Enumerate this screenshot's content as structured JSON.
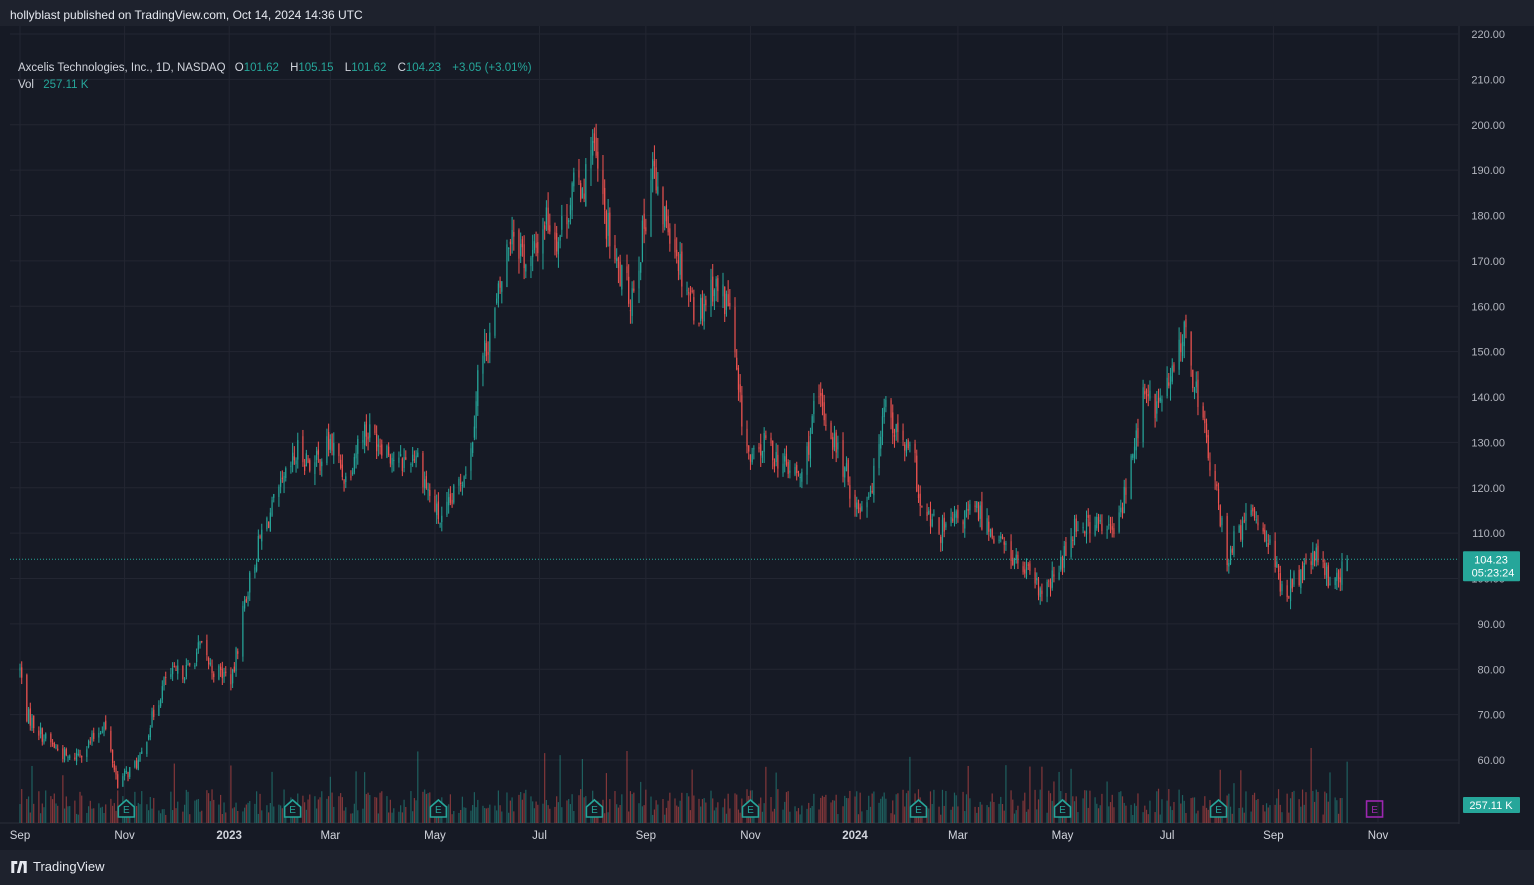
{
  "header": {
    "published_text": "hollyblast published on TradingView.com, Oct 14, 2024 14:36 UTC"
  },
  "legend": {
    "symbol": "Axcelis Technologies, Inc., 1D, NASDAQ",
    "o_label": "O",
    "o_value": "101.62",
    "h_label": "H",
    "h_value": "105.15",
    "l_label": "L",
    "l_value": "101.62",
    "c_label": "C",
    "c_value": "104.23",
    "change": "+3.05 (+3.01%)",
    "vol_label": "Vol",
    "vol_value": "257.11 K"
  },
  "price_badge": {
    "price": "104.23",
    "countdown": "05:23:24"
  },
  "volume_badge": "257.11 K",
  "footer": {
    "brand": "TradingView"
  },
  "colors": {
    "up": "#26a69a",
    "down": "#ef5350",
    "earnings_upcoming": "#9c27b0",
    "background": "#161a25"
  },
  "chart_data": {
    "type": "candlestick",
    "title": "Axcelis Technologies, Inc., 1D, NASDAQ",
    "price_axis": {
      "ticks": [
        "220.00",
        "210.00",
        "200.00",
        "190.00",
        "180.00",
        "170.00",
        "160.00",
        "150.00",
        "140.00",
        "130.00",
        "120.00",
        "110.00",
        "100.00",
        "90.00",
        "80.00",
        "70.00",
        "60.00"
      ],
      "range": [
        51,
        222
      ]
    },
    "time_axis": {
      "labels": [
        "Sep",
        "Nov",
        "2023",
        "Mar",
        "May",
        "Jul",
        "Sep",
        "Nov",
        "2024",
        "Mar",
        "May",
        "Jul",
        "Sep",
        "Nov"
      ],
      "bold_labels": [
        "2023",
        "2024"
      ],
      "start": "2022-09-01",
      "end": "2024-11-10"
    },
    "last_price": 104.23,
    "grid": true,
    "earnings_markers": [
      {
        "date": "2022-11-02",
        "label": "E"
      },
      {
        "date": "2023-02-07",
        "label": "E"
      },
      {
        "date": "2023-05-03",
        "label": "E"
      },
      {
        "date": "2023-08-02",
        "label": "E"
      },
      {
        "date": "2023-11-01",
        "label": "E"
      },
      {
        "date": "2024-02-07",
        "label": "E"
      },
      {
        "date": "2024-05-01",
        "label": "E"
      },
      {
        "date": "2024-07-31",
        "label": "E"
      },
      {
        "date": "2024-10-30",
        "label": "E",
        "upcoming": true
      }
    ],
    "close_anchors": [
      [
        "2022-09-01",
        80
      ],
      [
        "2022-09-05",
        70
      ],
      [
        "2022-09-15",
        65
      ],
      [
        "2022-09-30",
        60
      ],
      [
        "2022-10-10",
        63
      ],
      [
        "2022-10-20",
        68
      ],
      [
        "2022-10-28",
        55
      ],
      [
        "2022-11-10",
        60
      ],
      [
        "2022-11-16",
        68
      ],
      [
        "2022-11-25",
        78
      ],
      [
        "2022-12-08",
        80
      ],
      [
        "2022-12-15",
        85
      ],
      [
        "2022-12-22",
        80
      ],
      [
        "2023-01-03",
        78
      ],
      [
        "2023-01-10",
        95
      ],
      [
        "2023-01-20",
        110
      ],
      [
        "2023-02-01",
        120
      ],
      [
        "2023-02-10",
        128
      ],
      [
        "2023-02-20",
        125
      ],
      [
        "2023-03-01",
        130
      ],
      [
        "2023-03-10",
        122
      ],
      [
        "2023-03-20",
        133
      ],
      [
        "2023-04-01",
        130
      ],
      [
        "2023-04-10",
        125
      ],
      [
        "2023-04-20",
        128
      ],
      [
        "2023-04-28",
        118
      ],
      [
        "2023-05-05",
        112
      ],
      [
        "2023-05-12",
        118
      ],
      [
        "2023-05-22",
        128
      ],
      [
        "2023-05-26",
        145
      ],
      [
        "2023-06-05",
        158
      ],
      [
        "2023-06-15",
        178
      ],
      [
        "2023-06-25",
        168
      ],
      [
        "2023-07-05",
        180
      ],
      [
        "2023-07-12",
        175
      ],
      [
        "2023-07-20",
        185
      ],
      [
        "2023-07-28",
        188
      ],
      [
        "2023-07-31",
        198
      ],
      [
        "2023-08-08",
        180
      ],
      [
        "2023-08-15",
        168
      ],
      [
        "2023-08-23",
        162
      ],
      [
        "2023-08-30",
        175
      ],
      [
        "2023-09-05",
        192
      ],
      [
        "2023-09-08",
        182
      ],
      [
        "2023-09-15",
        178
      ],
      [
        "2023-09-22",
        168
      ],
      [
        "2023-10-01",
        158
      ],
      [
        "2023-10-10",
        165
      ],
      [
        "2023-10-20",
        160
      ],
      [
        "2023-10-25",
        140
      ],
      [
        "2023-11-01",
        125
      ],
      [
        "2023-11-10",
        130
      ],
      [
        "2023-11-20",
        125
      ],
      [
        "2023-12-01",
        122
      ],
      [
        "2023-12-10",
        140
      ],
      [
        "2023-12-20",
        130
      ],
      [
        "2024-01-03",
        115
      ],
      [
        "2024-01-12",
        122
      ],
      [
        "2024-01-18",
        140
      ],
      [
        "2024-01-25",
        132
      ],
      [
        "2024-02-05",
        125
      ],
      [
        "2024-02-08",
        115
      ],
      [
        "2024-02-20",
        110
      ],
      [
        "2024-03-01",
        113
      ],
      [
        "2024-03-12",
        115
      ],
      [
        "2024-03-22",
        110
      ],
      [
        "2024-04-01",
        105
      ],
      [
        "2024-04-12",
        100
      ],
      [
        "2024-04-20",
        96
      ],
      [
        "2024-04-30",
        103
      ],
      [
        "2024-05-08",
        112
      ],
      [
        "2024-05-20",
        112
      ],
      [
        "2024-06-01",
        110
      ],
      [
        "2024-06-10",
        125
      ],
      [
        "2024-06-17",
        140
      ],
      [
        "2024-06-25",
        138
      ],
      [
        "2024-07-05",
        145
      ],
      [
        "2024-07-10",
        155
      ],
      [
        "2024-07-18",
        142
      ],
      [
        "2024-07-25",
        128
      ],
      [
        "2024-08-05",
        105
      ],
      [
        "2024-08-12",
        110
      ],
      [
        "2024-08-20",
        115
      ],
      [
        "2024-08-28",
        110
      ],
      [
        "2024-09-06",
        97
      ],
      [
        "2024-09-16",
        100
      ],
      [
        "2024-09-25",
        105
      ],
      [
        "2024-10-03",
        100
      ],
      [
        "2024-10-10",
        101
      ],
      [
        "2024-10-14",
        104.23
      ]
    ]
  }
}
